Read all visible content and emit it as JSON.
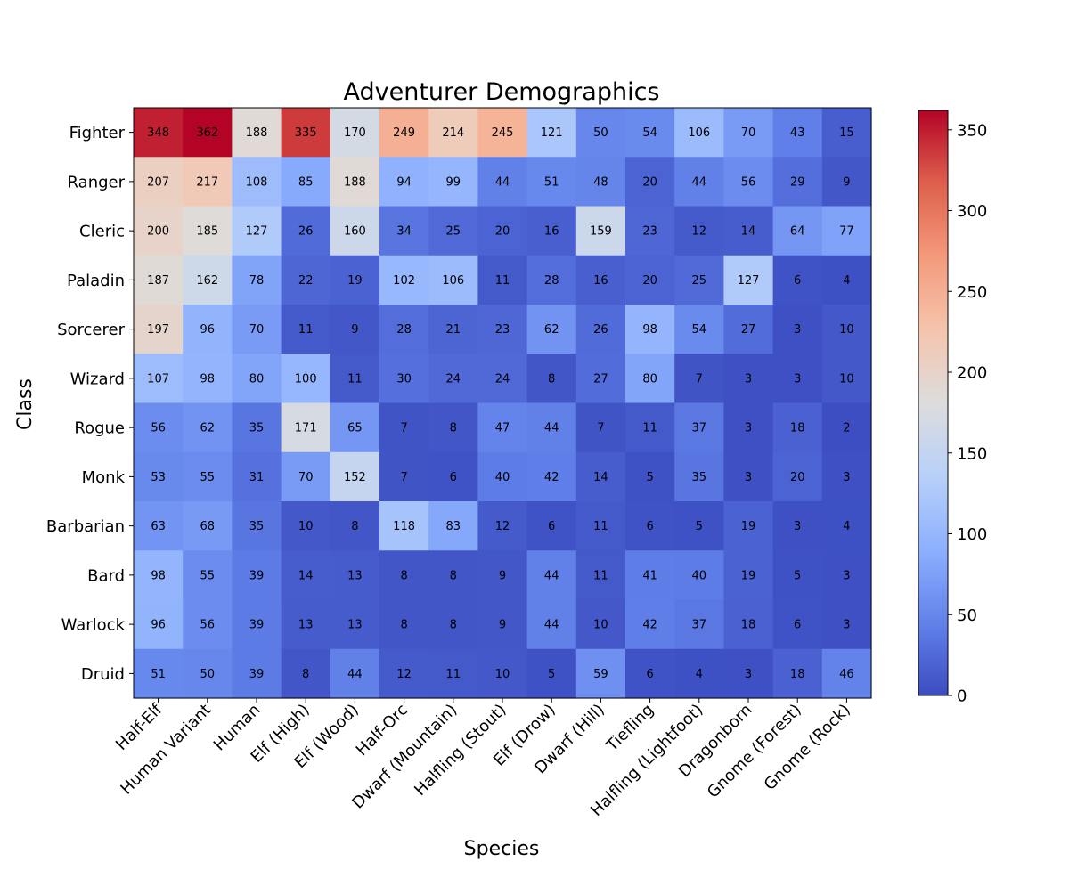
{
  "chart_data": {
    "type": "heatmap",
    "title": "Adventurer Demographics",
    "xlabel": "Species",
    "ylabel": "Class",
    "x_categories": [
      "Half-Elf",
      "Human Variant",
      "Human",
      "Elf (High)",
      "Elf (Wood)",
      "Half-Orc",
      "Dwarf (Mountain)",
      "Halfling (Stout)",
      "Elf (Drow)",
      "Dwarf (Hill)",
      "Tiefling",
      "Halfling (Lightfoot)",
      "Dragonborn",
      "Gnome (Forest)",
      "Gnome (Rock)"
    ],
    "y_categories": [
      "Fighter",
      "Ranger",
      "Cleric",
      "Paladin",
      "Sorcerer",
      "Wizard",
      "Rogue",
      "Monk",
      "Barbarian",
      "Bard",
      "Warlock",
      "Druid"
    ],
    "values": [
      [
        348,
        362,
        188,
        335,
        170,
        249,
        214,
        245,
        121,
        50,
        54,
        106,
        70,
        43,
        15
      ],
      [
        207,
        217,
        108,
        85,
        188,
        94,
        99,
        44,
        51,
        48,
        20,
        44,
        56,
        29,
        9
      ],
      [
        200,
        185,
        127,
        26,
        160,
        34,
        25,
        20,
        16,
        159,
        23,
        12,
        14,
        64,
        77
      ],
      [
        187,
        162,
        78,
        22,
        19,
        102,
        106,
        11,
        28,
        16,
        20,
        25,
        127,
        6,
        4
      ],
      [
        197,
        96,
        70,
        11,
        9,
        28,
        21,
        23,
        62,
        26,
        98,
        54,
        27,
        3,
        10
      ],
      [
        107,
        98,
        80,
        100,
        11,
        30,
        24,
        24,
        8,
        27,
        80,
        7,
        3,
        3,
        10
      ],
      [
        56,
        62,
        35,
        171,
        65,
        7,
        8,
        47,
        44,
        7,
        11,
        37,
        3,
        18,
        2
      ],
      [
        53,
        55,
        31,
        70,
        152,
        7,
        6,
        40,
        42,
        14,
        5,
        35,
        3,
        20,
        3
      ],
      [
        63,
        68,
        35,
        10,
        8,
        118,
        83,
        12,
        6,
        11,
        6,
        5,
        19,
        3,
        4
      ],
      [
        98,
        55,
        39,
        14,
        13,
        8,
        8,
        9,
        44,
        11,
        41,
        40,
        19,
        5,
        3
      ],
      [
        96,
        56,
        39,
        13,
        13,
        8,
        8,
        9,
        44,
        10,
        42,
        37,
        18,
        6,
        3
      ],
      [
        51,
        50,
        39,
        8,
        44,
        12,
        11,
        10,
        5,
        59,
        6,
        4,
        3,
        18,
        46
      ]
    ],
    "colormap": "coolwarm",
    "value_range": [
      0,
      362
    ],
    "colorbar_ticks": [
      0,
      50,
      100,
      150,
      200,
      250,
      300,
      350
    ],
    "cell_annotations": true,
    "grid": false
  }
}
